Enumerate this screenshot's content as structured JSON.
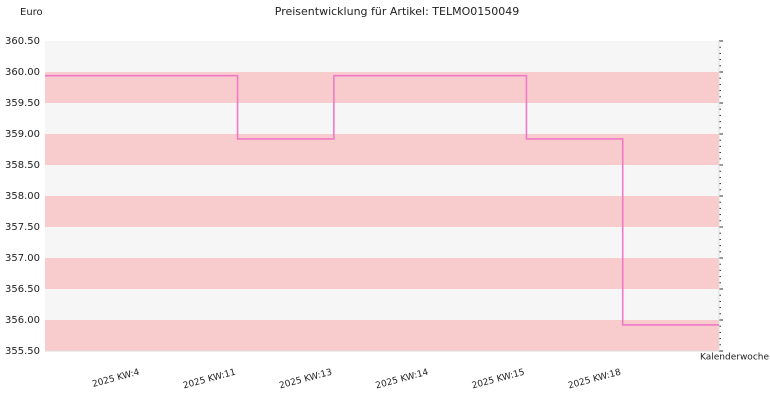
{
  "chart_data": {
    "type": "step",
    "title": "Preisentwicklung für Artikel: TELMO0150049",
    "y_label": "Euro",
    "x_label": "Kalenderwoche",
    "categories": [
      null,
      "2025 KW:4",
      "2025 KW:11",
      "2025 KW:13",
      "2025 KW:14",
      "2025 KW:15",
      "2025 KW:18",
      null
    ],
    "values": [
      359.94,
      359.94,
      358.92,
      359.94,
      359.94,
      358.92,
      355.92,
      355.92
    ],
    "color": "#f07ac8",
    "band_colors": [
      "#f8cccc",
      "#f6f6f6"
    ],
    "ylim": [
      355.5,
      360.5
    ],
    "yticks": [
      {
        "value": 355.5,
        "label": "355.50"
      },
      {
        "value": 356,
        "label": "356.00"
      },
      {
        "value": 356.5,
        "label": "356.50"
      },
      {
        "value": 357,
        "label": "357.00"
      },
      {
        "value": 357.5,
        "label": "357.50"
      },
      {
        "value": 358,
        "label": "358.00"
      },
      {
        "value": 358.5,
        "label": "358.50"
      },
      {
        "value": 359,
        "label": "359.00"
      },
      {
        "value": 359.5,
        "label": "359.50"
      },
      {
        "value": 360,
        "label": "360.00"
      },
      {
        "value": 360.5,
        "label": "360.50"
      }
    ]
  }
}
